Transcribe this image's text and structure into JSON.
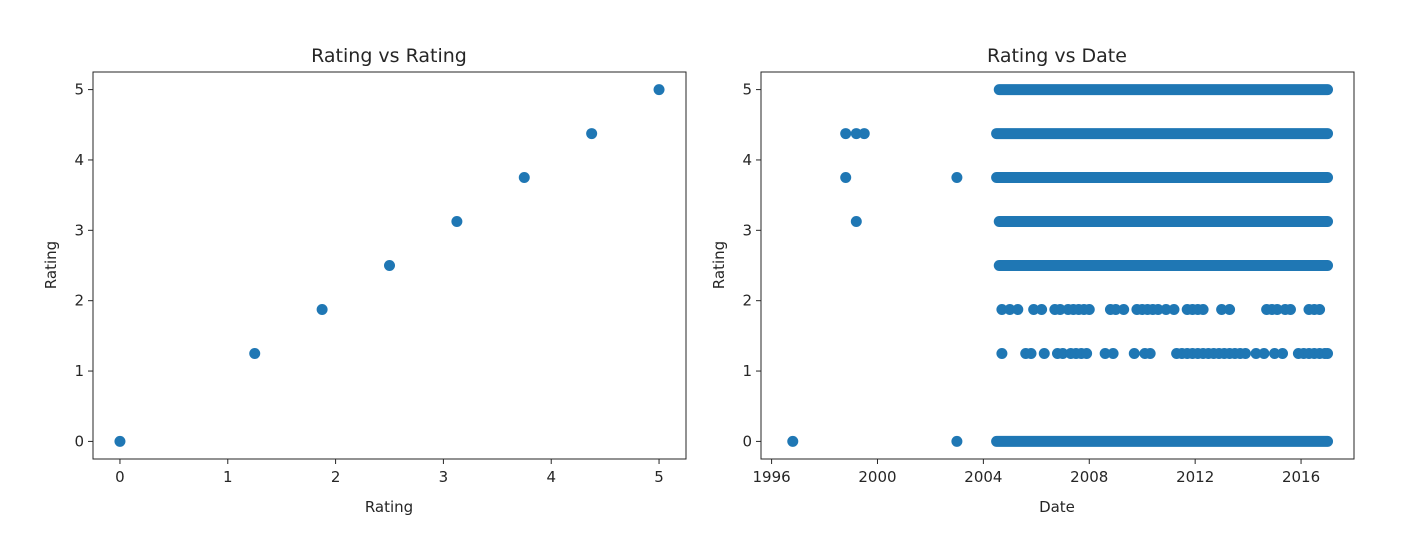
{
  "chart_data": [
    {
      "type": "scatter",
      "title": "Rating vs Rating",
      "xlabel": "Rating",
      "ylabel": "Rating",
      "xlim": [
        -0.25,
        5.25
      ],
      "ylim": [
        -0.25,
        5.25
      ],
      "xticks": [
        0,
        1,
        2,
        3,
        4,
        5
      ],
      "yticks": [
        0,
        1,
        2,
        3,
        4,
        5
      ],
      "grid": false,
      "color": "#1f77b4",
      "points": [
        {
          "x": 0,
          "y": 0
        },
        {
          "x": 1.25,
          "y": 1.25
        },
        {
          "x": 1.875,
          "y": 1.875
        },
        {
          "x": 2.5,
          "y": 2.5
        },
        {
          "x": 3.125,
          "y": 3.125
        },
        {
          "x": 3.75,
          "y": 3.75
        },
        {
          "x": 4.375,
          "y": 4.375
        },
        {
          "x": 5,
          "y": 5
        }
      ]
    },
    {
      "type": "scatter",
      "title": "Rating vs Date",
      "xlabel": "Date",
      "ylabel": "Rating",
      "xlim": [
        1995.6,
        2018.0
      ],
      "ylim": [
        -0.25,
        5.25
      ],
      "xticks": [
        1996,
        2000,
        2004,
        2008,
        2012,
        2016
      ],
      "yticks": [
        0,
        1,
        2,
        3,
        4,
        5
      ],
      "grid": false,
      "color": "#1f77b4",
      "isolated_points": [
        {
          "x": 1996.8,
          "y": 0
        },
        {
          "x": 2003.0,
          "y": 0
        },
        {
          "x": 2003.0,
          "y": 3.75
        },
        {
          "x": 1998.8,
          "y": 3.75
        },
        {
          "x": 1999.2,
          "y": 3.125
        },
        {
          "x": 1998.8,
          "y": 4.375
        },
        {
          "x": 1999.2,
          "y": 4.375
        },
        {
          "x": 1999.5,
          "y": 4.375
        }
      ],
      "dense_ranges": [
        {
          "y": 5,
          "from": 2004.6,
          "to": 2017.0
        },
        {
          "y": 4.375,
          "from": 2004.5,
          "to": 2017.0
        },
        {
          "y": 3.75,
          "from": 2004.5,
          "to": 2017.0
        },
        {
          "y": 3.125,
          "from": 2004.6,
          "to": 2017.0
        },
        {
          "y": 2.5,
          "from": 2004.6,
          "to": 2017.0
        },
        {
          "y": 0,
          "from": 2004.5,
          "to": 2017.0
        }
      ],
      "scattered_rows": [
        {
          "y": 1.875,
          "x": [
            2004.7,
            2005.0,
            2005.3,
            2005.9,
            2006.2,
            2006.7,
            2006.9,
            2007.2,
            2007.4,
            2007.6,
            2007.8,
            2008.0,
            2008.8,
            2009.0,
            2009.3,
            2009.8,
            2010.0,
            2010.2,
            2010.4,
            2010.6,
            2010.9,
            2011.2,
            2011.7,
            2011.9,
            2012.1,
            2012.3,
            2013.0,
            2013.3,
            2014.7,
            2014.9,
            2015.1,
            2015.4,
            2015.6,
            2016.3,
            2016.5,
            2016.7
          ]
        },
        {
          "y": 1.25,
          "x": [
            2004.7,
            2005.6,
            2005.8,
            2006.3,
            2006.8,
            2007.0,
            2007.3,
            2007.5,
            2007.7,
            2007.9,
            2008.6,
            2008.9,
            2009.7,
            2010.1,
            2010.3,
            2011.3,
            2011.5,
            2011.7,
            2011.9,
            2012.1,
            2012.3,
            2012.5,
            2012.7,
            2012.9,
            2013.1,
            2013.3,
            2013.5,
            2013.7,
            2013.9,
            2014.3,
            2014.6,
            2015.0,
            2015.3,
            2015.9,
            2016.1,
            2016.3,
            2016.5,
            2016.7,
            2016.9,
            2017.0
          ]
        }
      ]
    }
  ]
}
